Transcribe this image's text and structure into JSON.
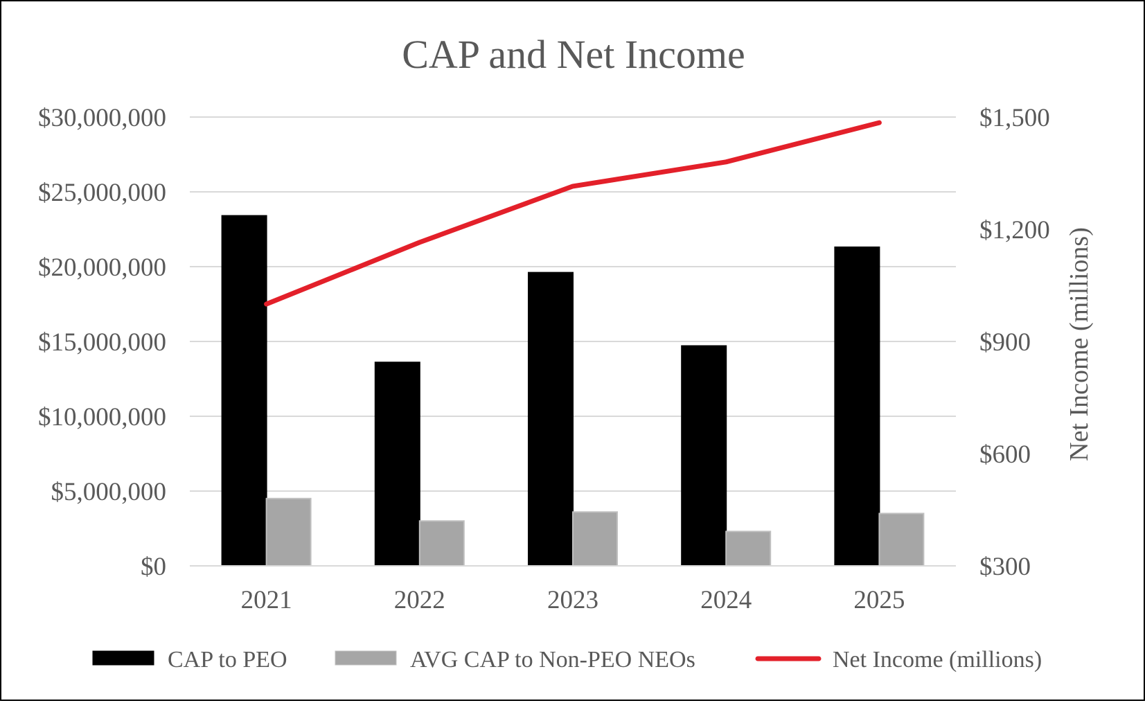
{
  "chart_data": {
    "type": "bar",
    "title": "CAP and Net Income",
    "categories": [
      "2021",
      "2022",
      "2023",
      "2024",
      "2025"
    ],
    "series": [
      {
        "name": "CAP to PEO",
        "type": "bar",
        "axis": "left",
        "color": "#000000",
        "values": [
          23400000,
          13600000,
          19600000,
          14700000,
          21300000
        ]
      },
      {
        "name": "AVG CAP to Non-PEO NEOs",
        "type": "bar",
        "axis": "left",
        "color": "#a6a6a6",
        "values": [
          4500000,
          3000000,
          3600000,
          2300000,
          3500000
        ]
      },
      {
        "name": "Net Income (millions)",
        "type": "line",
        "axis": "right",
        "color": "#e3202a",
        "values": [
          1000,
          1165,
          1315,
          1380,
          1485
        ]
      }
    ],
    "y_left": {
      "min": 0,
      "max": 30000000,
      "ticks": [
        0,
        5000000,
        10000000,
        15000000,
        20000000,
        25000000,
        30000000
      ],
      "tick_labels": [
        "$0",
        "$5,000,000",
        "$10,000,000",
        "$15,000,000",
        "$20,000,000",
        "$25,000,000",
        "$30,000,000"
      ],
      "label": ""
    },
    "y_right": {
      "min": 300,
      "max": 1500,
      "ticks": [
        300,
        600,
        900,
        1200,
        1500
      ],
      "tick_labels": [
        "$300",
        "$600",
        "$900",
        "$1,200",
        "$1,500"
      ],
      "label": "Net Income (millions)"
    },
    "grid": true,
    "legend": "bottom"
  }
}
